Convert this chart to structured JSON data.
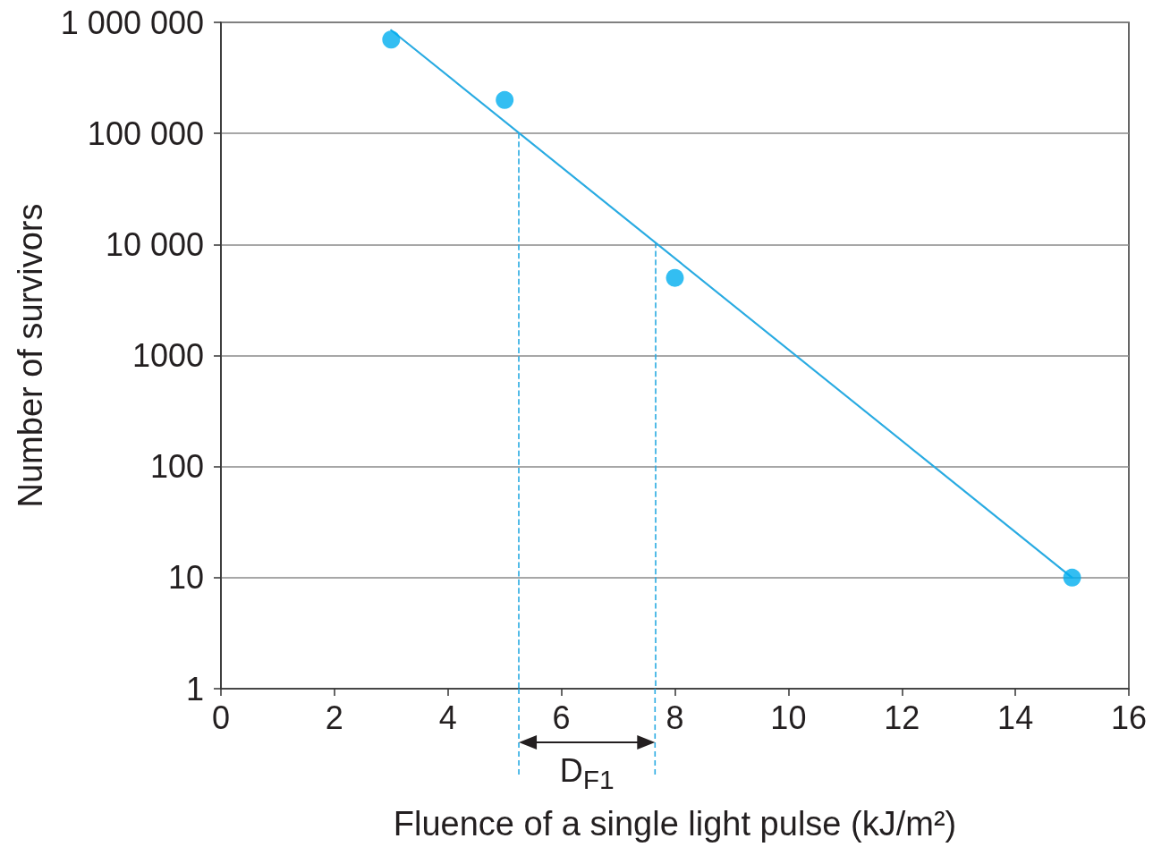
{
  "chart_data": {
    "type": "scatter",
    "xlabel": "Fluence of a single light pulse (kJ/m²)",
    "ylabel": "Number of survivors",
    "xlim": [
      0,
      16
    ],
    "xticks": [
      0,
      2,
      4,
      6,
      8,
      10,
      12,
      14,
      16
    ],
    "ylim": [
      1,
      1000000
    ],
    "yticks": [
      {
        "value": 1000000,
        "label": "1 000 000"
      },
      {
        "value": 100000,
        "label": "100 000"
      },
      {
        "value": 10000,
        "label": "10 000"
      },
      1000,
      100,
      10,
      1
    ],
    "log": true,
    "grid": "y",
    "series": [
      {
        "color": "#00aeef",
        "x": [
          3,
          5,
          8,
          15
        ],
        "values": [
          700000,
          200000,
          5000,
          10
        ],
        "marker": "circle"
      },
      {
        "type": "line",
        "color": "#29abe2",
        "x": [
          3,
          15
        ],
        "values": [
          850000,
          10
        ],
        "marker": "none",
        "line_style": "solid"
      }
    ],
    "ref_lines": [
      {
        "axis": "x",
        "value": 5.25,
        "color": "#29abe2",
        "line_style": "dashed"
      },
      {
        "axis": "x",
        "value": 7.65,
        "color": "#29abe2",
        "line_style": "dashed"
      }
    ],
    "annotations": [
      "D$_{F1}$"
    ]
  }
}
